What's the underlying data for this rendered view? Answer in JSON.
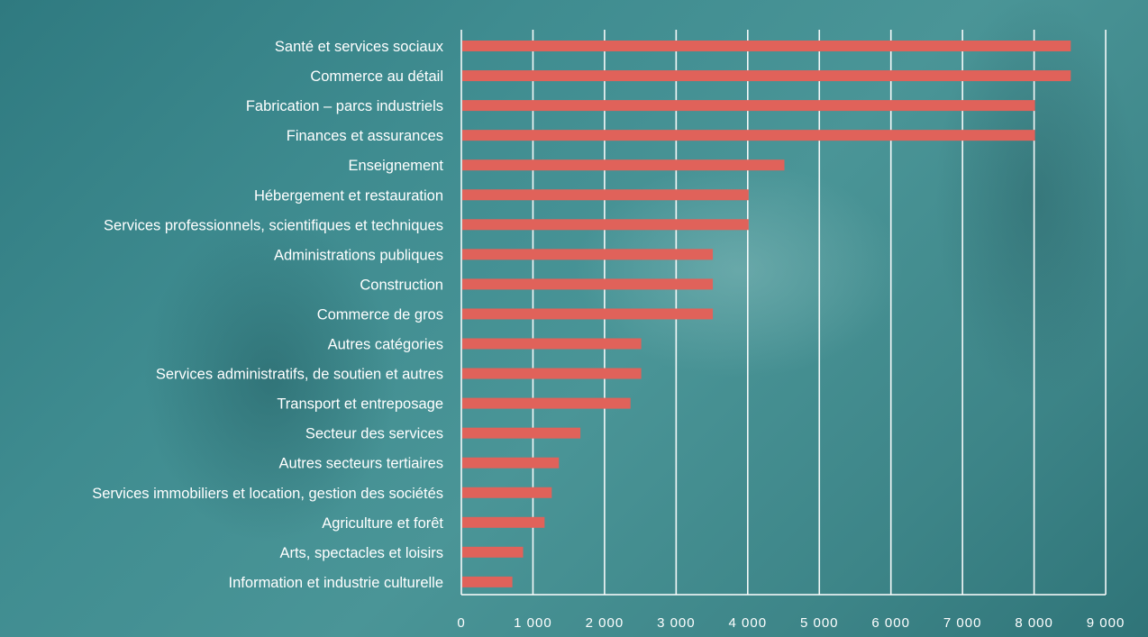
{
  "chart_data": {
    "type": "bar",
    "orientation": "horizontal",
    "categories": [
      "Santé et services sociaux",
      "Commerce au détail",
      "Fabrication – parcs industriels",
      "Finances et assurances",
      "Enseignement",
      "Hébergement et restauration",
      "Services professionnels, scientifiques et techniques",
      "Administrations publiques",
      "Construction",
      "Commerce de gros",
      "Autres catégories",
      "Services administratifs, de soutien et autres",
      "Transport et entreposage",
      "Secteur des services",
      "Autres secteurs tertiaires",
      "Services immobiliers et location, gestion des sociétés",
      "Agriculture et forêt",
      "Arts, spectacles et loisirs",
      "Information et industrie culturelle"
    ],
    "values": [
      8500,
      8500,
      8000,
      8000,
      4500,
      4000,
      4000,
      3500,
      3500,
      3500,
      2500,
      2500,
      2350,
      1650,
      1350,
      1250,
      1150,
      850,
      700
    ],
    "xlim": [
      0,
      9000
    ],
    "xticks": [
      0,
      1000,
      2000,
      3000,
      4000,
      5000,
      6000,
      7000,
      8000,
      9000
    ],
    "xtick_labels": [
      "0",
      "1 000",
      "2 000",
      "3 000",
      "4 000",
      "5 000",
      "6 000",
      "7 000",
      "8 000",
      "9 000"
    ],
    "title": "",
    "xlabel": "",
    "ylabel": "",
    "grid": "vertical",
    "legend": "none",
    "colors": {
      "bar": "#e0625a",
      "grid": "#ffffff",
      "text": "#ffffff",
      "background": "#3f8c90"
    }
  }
}
